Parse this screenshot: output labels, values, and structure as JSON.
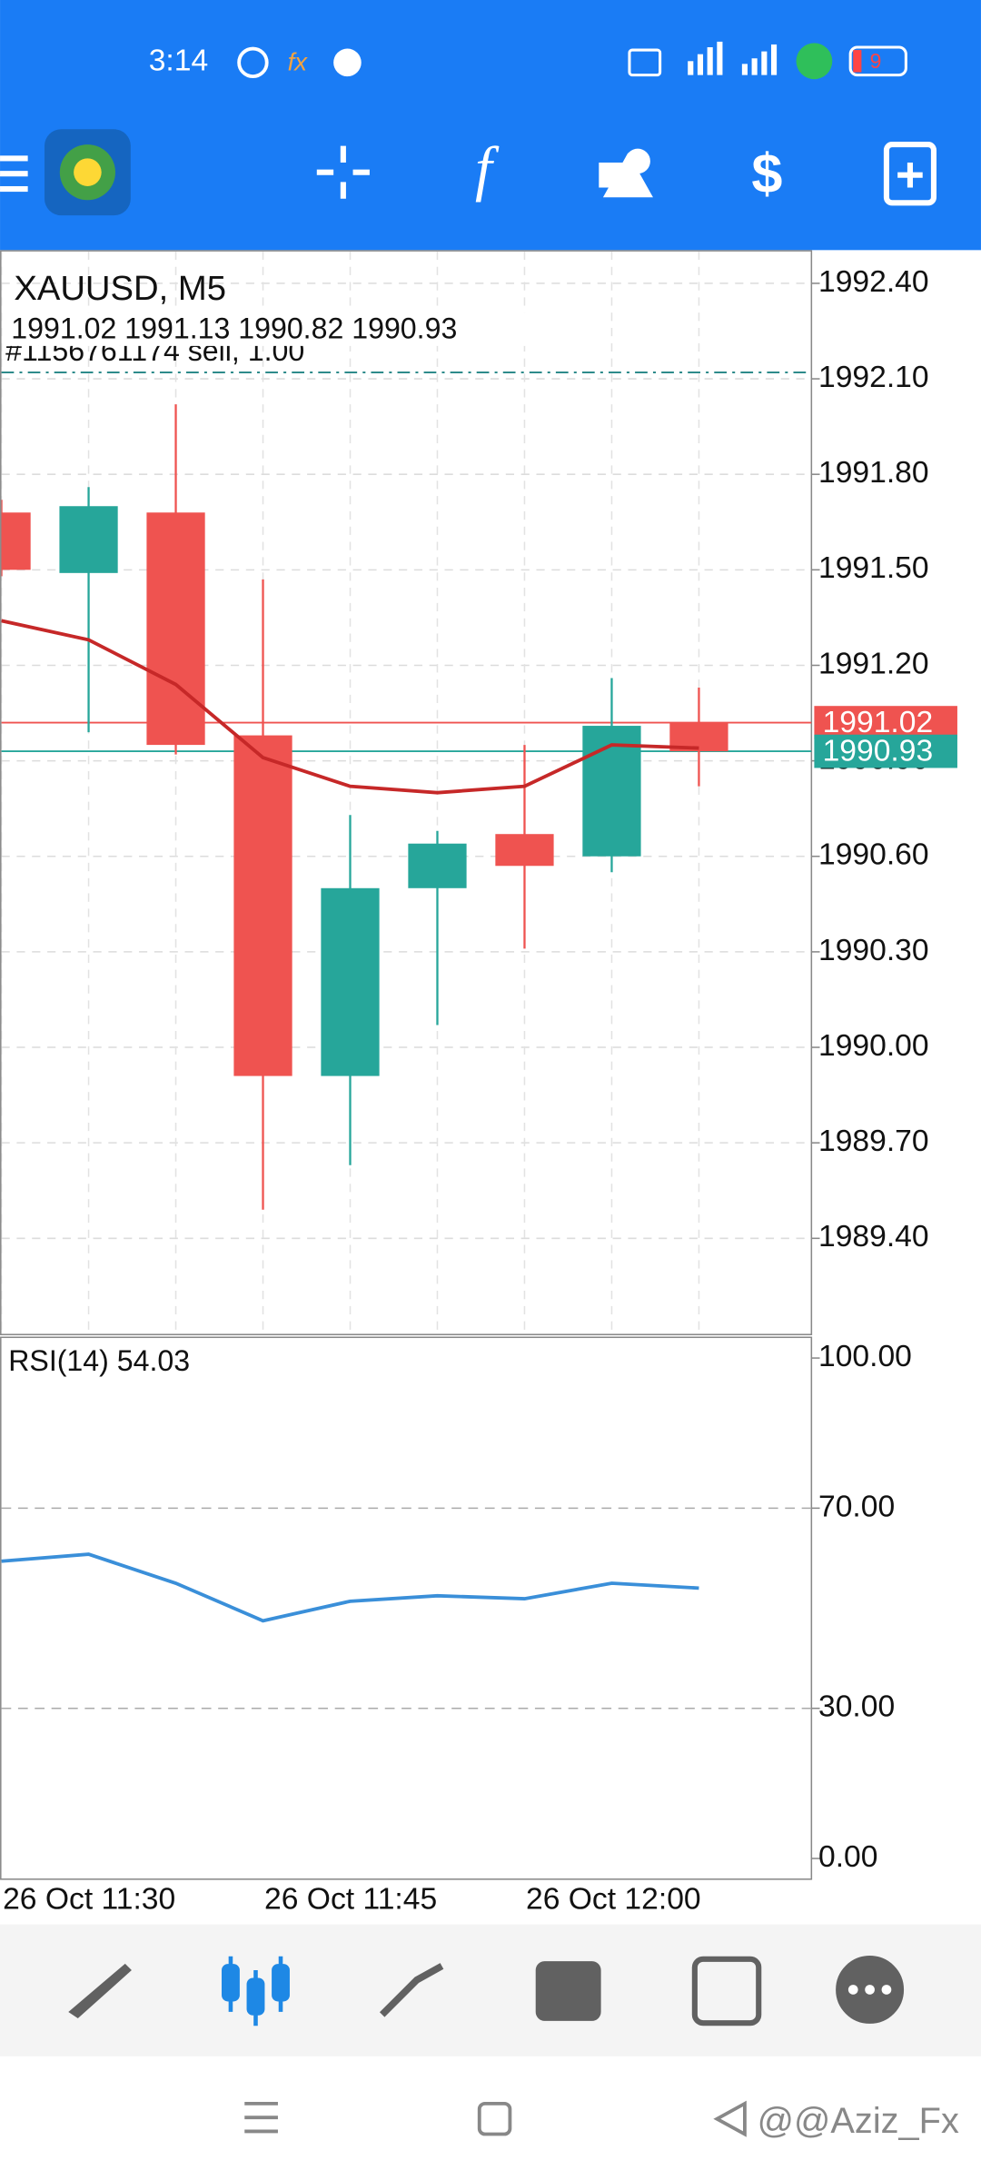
{
  "status_bar": {
    "time": "3:14",
    "battery": "9"
  },
  "chart_data": [
    {
      "type": "candlestick",
      "title": "XAUUSD, M5",
      "subtitle": "1991.02 1991.13 1990.82 1990.93",
      "categories": [
        "26 Oct 11:30",
        null,
        null,
        "26 Oct 11:45",
        null,
        null,
        "26 Oct 12:00",
        null,
        null
      ],
      "open": [
        1991.68,
        1991.49,
        1991.68,
        1990.98,
        1989.91,
        1990.5,
        1990.67,
        1990.6,
        1991.02
      ],
      "high": [
        1991.72,
        1991.76,
        1992.02,
        1991.47,
        1990.73,
        1990.68,
        1990.95,
        1991.16,
        1991.13
      ],
      "low": [
        1991.48,
        1990.99,
        1990.92,
        1989.49,
        1989.63,
        1990.07,
        1990.31,
        1990.55,
        1990.82
      ],
      "close": [
        1991.5,
        1991.7,
        1990.95,
        1989.91,
        1990.5,
        1990.64,
        1990.57,
        1991.01,
        1990.93
      ],
      "up_color": "#26a69a",
      "down_color": "#ef5350",
      "ma": {
        "color": "#c62828",
        "values": [
          1991.34,
          1991.28,
          1991.14,
          1990.91,
          1990.82,
          1990.8,
          1990.82,
          1990.95,
          1990.94
        ]
      },
      "order_line": {
        "label": "#1156761174 sell, 1.00",
        "value": 1992.12,
        "color": "#2e8b8b"
      },
      "price_lines": [
        {
          "value": 1991.02,
          "color": "#ef5350"
        },
        {
          "value": 1990.93,
          "color": "#26a69a"
        }
      ],
      "ylim": [
        1989.1,
        1992.5
      ],
      "yticks": [
        {
          "value": 1992.4,
          "label": "1992.40"
        },
        {
          "value": 1992.1,
          "label": "1992.10"
        },
        {
          "value": 1991.8,
          "label": "1991.80"
        },
        {
          "value": 1991.5,
          "label": "1991.50"
        },
        {
          "value": 1991.2,
          "label": "1991.20"
        },
        {
          "value": 1990.9,
          "label": "1990.90"
        },
        {
          "value": 1990.6,
          "label": "1990.60"
        },
        {
          "value": 1990.3,
          "label": "1990.30"
        },
        {
          "value": 1990.0,
          "label": "1990.00"
        },
        {
          "value": 1989.7,
          "label": "1989.70"
        },
        {
          "value": 1989.4,
          "label": "1989.40"
        }
      ],
      "grid": true
    },
    {
      "type": "line",
      "title": "RSI(14) 54.03",
      "values": [
        59.4,
        60.8,
        55.0,
        47.5,
        51.4,
        52.5,
        51.9,
        55.0,
        54.03
      ],
      "color": "#3a8fd9",
      "ylim": [
        -4,
        104
      ],
      "yticks": [
        {
          "value": 100,
          "label": "100.00"
        },
        {
          "value": 70,
          "label": "70.00"
        },
        {
          "value": 30,
          "label": "30.00"
        },
        {
          "value": 0,
          "label": "0.00"
        }
      ],
      "levels": [
        70,
        30
      ]
    }
  ],
  "watermark": "@@Aziz_Fx"
}
